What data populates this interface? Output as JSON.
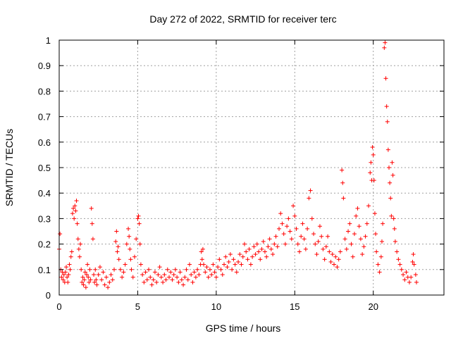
{
  "chart_data": {
    "type": "scatter",
    "title": "Day 272 of 2022, SRMTID for receiver terc",
    "xlabel": "GPS time / hours",
    "ylabel": "SRMTID / TECUs",
    "xlim": [
      0,
      24.5
    ],
    "ylim": [
      0,
      1
    ],
    "x_ticks": [
      0,
      5,
      10,
      15,
      20
    ],
    "x_tick_labels": [
      "0",
      "5",
      "10",
      "15",
      "20"
    ],
    "y_ticks": [
      0,
      0.1,
      0.2,
      0.3,
      0.4,
      0.5,
      0.6,
      0.7,
      0.8,
      0.9,
      1
    ],
    "y_tick_labels": [
      "0",
      "0.1",
      "0.2",
      "0.3",
      "0.4",
      "0.5",
      "0.6",
      "0.7",
      "0.8",
      "0.9",
      "1"
    ],
    "grid": true,
    "marker": "+",
    "marker_color": "#ff0000",
    "series": [
      {
        "name": "SRMTID",
        "points": [
          [
            0.0,
            0.18
          ],
          [
            0.05,
            0.24
          ],
          [
            0.1,
            0.1
          ],
          [
            0.15,
            0.07
          ],
          [
            0.2,
            0.09
          ],
          [
            0.25,
            0.06
          ],
          [
            0.3,
            0.08
          ],
          [
            0.35,
            0.05
          ],
          [
            0.4,
            0.09
          ],
          [
            0.45,
            0.11
          ],
          [
            0.5,
            0.07
          ],
          [
            0.55,
            0.05
          ],
          [
            0.6,
            0.08
          ],
          [
            0.65,
            0.12
          ],
          [
            0.7,
            0.1
          ],
          [
            0.75,
            0.15
          ],
          [
            0.8,
            0.17
          ],
          [
            0.85,
            0.32
          ],
          [
            0.9,
            0.34
          ],
          [
            0.95,
            0.3
          ],
          [
            1.0,
            0.35
          ],
          [
            1.05,
            0.33
          ],
          [
            1.1,
            0.37
          ],
          [
            1.15,
            0.28
          ],
          [
            1.2,
            0.22
          ],
          [
            1.25,
            0.18
          ],
          [
            1.3,
            0.15
          ],
          [
            1.35,
            0.2
          ],
          [
            1.4,
            0.1
          ],
          [
            1.45,
            0.05
          ],
          [
            1.5,
            0.07
          ],
          [
            1.55,
            0.04
          ],
          [
            1.6,
            0.06
          ],
          [
            1.65,
            0.09
          ],
          [
            1.7,
            0.03
          ],
          [
            1.75,
            0.08
          ],
          [
            1.8,
            0.12
          ],
          [
            1.85,
            0.07
          ],
          [
            1.9,
            0.05
          ],
          [
            1.95,
            0.1
          ],
          [
            2.0,
            0.06
          ],
          [
            2.05,
            0.34
          ],
          [
            2.1,
            0.28
          ],
          [
            2.15,
            0.22
          ],
          [
            2.2,
            0.08
          ],
          [
            2.25,
            0.05
          ],
          [
            2.3,
            0.1
          ],
          [
            2.35,
            0.06
          ],
          [
            2.4,
            0.04
          ],
          [
            2.5,
            0.08
          ],
          [
            2.6,
            0.11
          ],
          [
            2.7,
            0.06
          ],
          [
            2.8,
            0.09
          ],
          [
            2.9,
            0.04
          ],
          [
            3.0,
            0.07
          ],
          [
            3.1,
            0.03
          ],
          [
            3.2,
            0.05
          ],
          [
            3.3,
            0.08
          ],
          [
            3.4,
            0.06
          ],
          [
            3.5,
            0.1
          ],
          [
            3.6,
            0.21
          ],
          [
            3.65,
            0.25
          ],
          [
            3.7,
            0.17
          ],
          [
            3.75,
            0.19
          ],
          [
            3.8,
            0.14
          ],
          [
            3.9,
            0.1
          ],
          [
            4.0,
            0.07
          ],
          [
            4.1,
            0.09
          ],
          [
            4.2,
            0.12
          ],
          [
            4.3,
            0.2
          ],
          [
            4.4,
            0.26
          ],
          [
            4.45,
            0.23
          ],
          [
            4.5,
            0.18
          ],
          [
            4.55,
            0.14
          ],
          [
            4.6,
            0.1
          ],
          [
            4.7,
            0.07
          ],
          [
            4.8,
            0.15
          ],
          [
            4.9,
            0.22
          ],
          [
            5.0,
            0.3
          ],
          [
            5.05,
            0.31
          ],
          [
            5.1,
            0.28
          ],
          [
            5.15,
            0.2
          ],
          [
            5.2,
            0.12
          ],
          [
            5.3,
            0.08
          ],
          [
            5.4,
            0.05
          ],
          [
            5.5,
            0.09
          ],
          [
            5.6,
            0.06
          ],
          [
            5.7,
            0.1
          ],
          [
            5.8,
            0.07
          ],
          [
            5.9,
            0.04
          ],
          [
            6.0,
            0.06
          ],
          [
            6.1,
            0.09
          ],
          [
            6.2,
            0.05
          ],
          [
            6.3,
            0.08
          ],
          [
            6.4,
            0.11
          ],
          [
            6.5,
            0.07
          ],
          [
            6.6,
            0.05
          ],
          [
            6.7,
            0.08
          ],
          [
            6.8,
            0.06
          ],
          [
            6.9,
            0.1
          ],
          [
            7.0,
            0.07
          ],
          [
            7.1,
            0.09
          ],
          [
            7.2,
            0.06
          ],
          [
            7.3,
            0.08
          ],
          [
            7.4,
            0.1
          ],
          [
            7.5,
            0.07
          ],
          [
            7.6,
            0.05
          ],
          [
            7.7,
            0.09
          ],
          [
            7.8,
            0.06
          ],
          [
            7.9,
            0.04
          ],
          [
            8.0,
            0.07
          ],
          [
            8.1,
            0.1
          ],
          [
            8.2,
            0.06
          ],
          [
            8.3,
            0.12
          ],
          [
            8.4,
            0.08
          ],
          [
            8.5,
            0.05
          ],
          [
            8.6,
            0.09
          ],
          [
            8.7,
            0.07
          ],
          [
            8.8,
            0.1
          ],
          [
            8.9,
            0.08
          ],
          [
            9.0,
            0.12
          ],
          [
            9.05,
            0.17
          ],
          [
            9.1,
            0.14
          ],
          [
            9.15,
            0.18
          ],
          [
            9.2,
            0.12
          ],
          [
            9.3,
            0.09
          ],
          [
            9.4,
            0.11
          ],
          [
            9.5,
            0.07
          ],
          [
            9.6,
            0.1
          ],
          [
            9.7,
            0.08
          ],
          [
            9.8,
            0.12
          ],
          [
            9.9,
            0.09
          ],
          [
            10.0,
            0.07
          ],
          [
            10.1,
            0.11
          ],
          [
            10.2,
            0.14
          ],
          [
            10.3,
            0.1
          ],
          [
            10.4,
            0.08
          ],
          [
            10.5,
            0.12
          ],
          [
            10.6,
            0.15
          ],
          [
            10.7,
            0.11
          ],
          [
            10.8,
            0.13
          ],
          [
            10.9,
            0.16
          ],
          [
            11.0,
            0.1
          ],
          [
            11.1,
            0.14
          ],
          [
            11.2,
            0.12
          ],
          [
            11.3,
            0.09
          ],
          [
            11.4,
            0.13
          ],
          [
            11.5,
            0.16
          ],
          [
            11.6,
            0.12
          ],
          [
            11.7,
            0.15
          ],
          [
            11.8,
            0.2
          ],
          [
            11.9,
            0.17
          ],
          [
            12.0,
            0.14
          ],
          [
            12.1,
            0.18
          ],
          [
            12.2,
            0.12
          ],
          [
            12.3,
            0.15
          ],
          [
            12.4,
            0.19
          ],
          [
            12.5,
            0.16
          ],
          [
            12.6,
            0.2
          ],
          [
            12.7,
            0.17
          ],
          [
            12.8,
            0.14
          ],
          [
            12.9,
            0.18
          ],
          [
            13.0,
            0.21
          ],
          [
            13.1,
            0.17
          ],
          [
            13.2,
            0.15
          ],
          [
            13.3,
            0.19
          ],
          [
            13.4,
            0.22
          ],
          [
            13.5,
            0.18
          ],
          [
            13.6,
            0.16
          ],
          [
            13.7,
            0.2
          ],
          [
            13.8,
            0.23
          ],
          [
            13.9,
            0.19
          ],
          [
            14.0,
            0.26
          ],
          [
            14.1,
            0.32
          ],
          [
            14.2,
            0.28
          ],
          [
            14.3,
            0.24
          ],
          [
            14.4,
            0.2
          ],
          [
            14.5,
            0.27
          ],
          [
            14.6,
            0.3
          ],
          [
            14.7,
            0.25
          ],
          [
            14.8,
            0.22
          ],
          [
            14.9,
            0.35
          ],
          [
            15.0,
            0.31
          ],
          [
            15.1,
            0.26
          ],
          [
            15.2,
            0.2
          ],
          [
            15.3,
            0.17
          ],
          [
            15.4,
            0.23
          ],
          [
            15.5,
            0.28
          ],
          [
            15.6,
            0.22
          ],
          [
            15.7,
            0.18
          ],
          [
            15.8,
            0.26
          ],
          [
            15.9,
            0.38
          ],
          [
            16.0,
            0.41
          ],
          [
            16.1,
            0.3
          ],
          [
            16.2,
            0.24
          ],
          [
            16.3,
            0.2
          ],
          [
            16.4,
            0.16
          ],
          [
            16.5,
            0.21
          ],
          [
            16.6,
            0.27
          ],
          [
            16.7,
            0.23
          ],
          [
            16.8,
            0.18
          ],
          [
            16.9,
            0.14
          ],
          [
            17.0,
            0.19
          ],
          [
            17.1,
            0.23
          ],
          [
            17.2,
            0.17
          ],
          [
            17.3,
            0.13
          ],
          [
            17.4,
            0.16
          ],
          [
            17.5,
            0.12
          ],
          [
            17.6,
            0.15
          ],
          [
            17.7,
            0.11
          ],
          [
            17.8,
            0.14
          ],
          [
            17.9,
            0.17
          ],
          [
            18.0,
            0.49
          ],
          [
            18.05,
            0.44
          ],
          [
            18.1,
            0.38
          ],
          [
            18.2,
            0.22
          ],
          [
            18.3,
            0.18
          ],
          [
            18.4,
            0.25
          ],
          [
            18.5,
            0.28
          ],
          [
            18.6,
            0.2
          ],
          [
            18.7,
            0.15
          ],
          [
            18.8,
            0.24
          ],
          [
            18.9,
            0.31
          ],
          [
            19.0,
            0.34
          ],
          [
            19.1,
            0.27
          ],
          [
            19.2,
            0.22
          ],
          [
            19.3,
            0.16
          ],
          [
            19.4,
            0.19
          ],
          [
            19.5,
            0.23
          ],
          [
            19.6,
            0.28
          ],
          [
            19.7,
            0.35
          ],
          [
            19.8,
            0.48
          ],
          [
            19.85,
            0.52
          ],
          [
            19.9,
            0.45
          ],
          [
            19.95,
            0.58
          ],
          [
            20.0,
            0.55
          ],
          [
            20.05,
            0.45
          ],
          [
            20.1,
            0.32
          ],
          [
            20.15,
            0.24
          ],
          [
            20.2,
            0.17
          ],
          [
            20.3,
            0.12
          ],
          [
            20.4,
            0.09
          ],
          [
            20.5,
            0.15
          ],
          [
            20.55,
            0.21
          ],
          [
            20.6,
            0.28
          ],
          [
            20.7,
            0.97
          ],
          [
            20.75,
            0.99
          ],
          [
            20.8,
            0.85
          ],
          [
            20.85,
            0.74
          ],
          [
            20.9,
            0.68
          ],
          [
            20.95,
            0.57
          ],
          [
            21.0,
            0.5
          ],
          [
            21.05,
            0.44
          ],
          [
            21.1,
            0.38
          ],
          [
            21.15,
            0.31
          ],
          [
            21.2,
            0.52
          ],
          [
            21.25,
            0.47
          ],
          [
            21.3,
            0.3
          ],
          [
            21.35,
            0.26
          ],
          [
            21.4,
            0.21
          ],
          [
            21.5,
            0.17
          ],
          [
            21.6,
            0.14
          ],
          [
            21.7,
            0.12
          ],
          [
            21.8,
            0.1
          ],
          [
            21.9,
            0.08
          ],
          [
            22.0,
            0.06
          ],
          [
            22.1,
            0.09
          ],
          [
            22.2,
            0.07
          ],
          [
            22.3,
            0.05
          ],
          [
            22.4,
            0.07
          ],
          [
            22.5,
            0.13
          ],
          [
            22.55,
            0.16
          ],
          [
            22.6,
            0.12
          ],
          [
            22.7,
            0.08
          ],
          [
            22.75,
            0.05
          ]
        ]
      }
    ]
  }
}
